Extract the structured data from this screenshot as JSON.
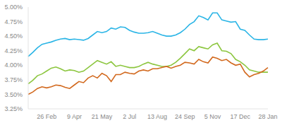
{
  "chart_data": {
    "type": "line",
    "categories": [
      null,
      null,
      null,
      null,
      "26 Feb",
      null,
      null,
      null,
      null,
      null,
      "9 Apr",
      null,
      null,
      null,
      null,
      null,
      "21 May",
      null,
      null,
      null,
      null,
      null,
      "2 Jul",
      null,
      null,
      null,
      null,
      null,
      "13 Aug",
      null,
      null,
      null,
      null,
      null,
      "24 Sep",
      null,
      null,
      null,
      null,
      null,
      "5 Nov",
      null,
      null,
      null,
      null,
      null,
      "17 Dec",
      null,
      null,
      null,
      null,
      null,
      "28 Jan"
    ],
    "series": [
      {
        "color": "#2bb5e6",
        "values": [
          4.15,
          4.22,
          4.3,
          4.36,
          4.38,
          4.4,
          4.43,
          4.45,
          4.46,
          4.44,
          4.45,
          4.44,
          4.43,
          4.46,
          4.52,
          4.58,
          4.56,
          4.58,
          4.64,
          4.62,
          4.66,
          4.65,
          4.6,
          4.57,
          4.55,
          4.55,
          4.56,
          4.58,
          4.55,
          4.52,
          4.5,
          4.5,
          4.52,
          4.56,
          4.62,
          4.7,
          4.75,
          4.85,
          4.82,
          4.78,
          4.9,
          4.9,
          4.78,
          4.76,
          4.74,
          4.75,
          4.62,
          4.6,
          4.52,
          4.45,
          4.44,
          4.44,
          4.45
        ]
      },
      {
        "color": "#8cc63f",
        "values": [
          3.68,
          3.74,
          3.82,
          3.85,
          3.9,
          3.95,
          3.97,
          3.94,
          3.9,
          3.92,
          3.91,
          3.88,
          3.9,
          3.96,
          4.02,
          4.08,
          4.05,
          4.02,
          4.06,
          3.98,
          4.0,
          3.98,
          3.96,
          3.96,
          3.98,
          4.02,
          4.05,
          4.02,
          4.0,
          3.98,
          3.98,
          4.0,
          4.05,
          4.12,
          4.2,
          4.28,
          4.25,
          4.32,
          4.3,
          4.28,
          4.35,
          4.38,
          4.25,
          4.24,
          4.2,
          4.1,
          4.06,
          4.0,
          3.92,
          3.9,
          3.88,
          3.88,
          3.88
        ]
      },
      {
        "color": "#d2691e",
        "values": [
          3.5,
          3.54,
          3.6,
          3.63,
          3.61,
          3.63,
          3.66,
          3.65,
          3.62,
          3.6,
          3.66,
          3.72,
          3.7,
          3.78,
          3.82,
          3.78,
          3.86,
          3.82,
          3.72,
          3.84,
          3.84,
          3.88,
          3.86,
          3.85,
          3.9,
          3.92,
          3.9,
          3.94,
          3.94,
          3.96,
          3.98,
          3.95,
          3.98,
          4.0,
          4.05,
          4.04,
          4.02,
          4.1,
          4.06,
          4.04,
          4.14,
          4.12,
          4.08,
          4.1,
          4.04,
          4.0,
          4.02,
          3.88,
          3.8,
          3.84,
          3.86,
          3.9,
          3.96
        ]
      }
    ],
    "ylim": [
      3.25,
      5.0
    ],
    "yticks": [
      {
        "value": 3.25,
        "label": "3.25%"
      },
      {
        "value": 3.5,
        "label": "3.50%"
      },
      {
        "value": 3.75,
        "label": "3.75%"
      },
      {
        "value": 4.0,
        "label": "4.00%"
      },
      {
        "value": 4.25,
        "label": "4.25%"
      },
      {
        "value": 4.5,
        "label": "4.50%"
      },
      {
        "value": 4.75,
        "label": "4.75%"
      },
      {
        "value": 5.0,
        "label": "5.00%"
      }
    ],
    "grid": false
  }
}
